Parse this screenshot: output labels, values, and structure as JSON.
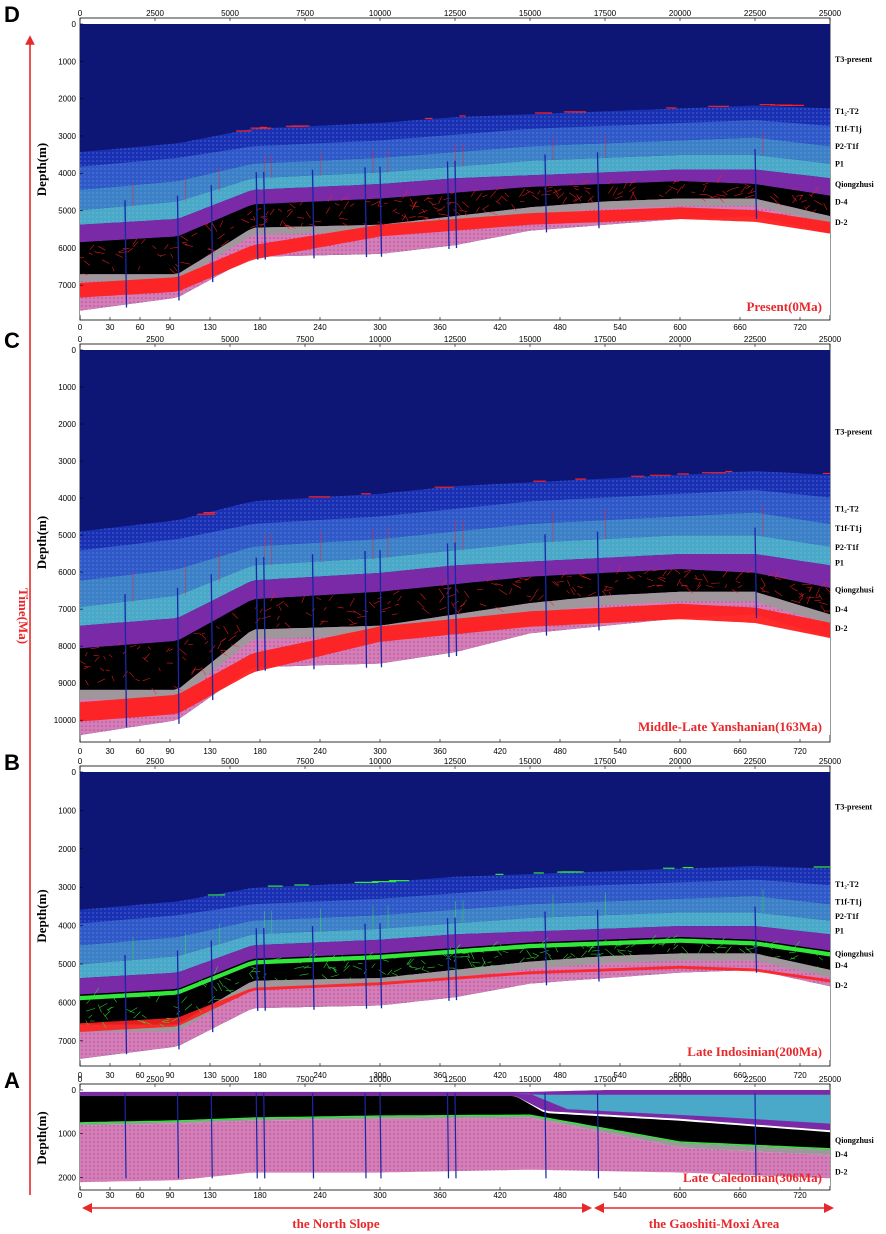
{
  "time_axis_label": "Time(Ma)",
  "depth_label": "Depth(m)",
  "top_ticks": [
    "0",
    "2500",
    "5000",
    "7500",
    "10000",
    "12500",
    "15000",
    "17500",
    "20000",
    "22500",
    "25000"
  ],
  "bottom_ticks": [
    "0",
    "30",
    "60",
    "90",
    "120",
    "150",
    "180",
    "210",
    "240",
    "270",
    "300",
    "330",
    "360",
    "390",
    "420",
    "450",
    "480",
    "510",
    "540",
    "570",
    "600",
    "630",
    "660",
    "690",
    "720",
    "750"
  ],
  "bottom_ticks_shown": [
    "0",
    "30",
    "60",
    "90",
    "130",
    "180",
    "240",
    "300",
    "360",
    "420",
    "480",
    "540",
    "600",
    "660",
    "720"
  ],
  "regions": {
    "north_slope": "the North Slope",
    "gaoshiti_moxi": "the Gaoshiti-Moxi Area"
  },
  "colors": {
    "background": "#0d1575",
    "t1_t2": "#1a30b4",
    "t1f_t1j": "#2f58c9",
    "p2_t1f": "#3c80c8",
    "p1": "#4aa9c8",
    "qiongzhusi": "#000000",
    "d4": "#9a9a9a",
    "d2": "#d67db8",
    "accent": "#e8282b",
    "oil": "#ff2020",
    "gas": "#30e83a",
    "well": "#1828a8",
    "purple_band": "#7a2aa6"
  },
  "panels": [
    {
      "letter": "D",
      "caption": "Present(0Ma)",
      "depth_ticks": [
        "0",
        "1000",
        "2000",
        "3000",
        "4000",
        "5000",
        "6000",
        "7000"
      ],
      "layers": [
        "T3-present",
        "T1₂-T2",
        "T1f-T1j",
        "P2-T1f",
        "P1",
        "Qiongzhusi",
        "D-4",
        "D-2"
      ],
      "fluid": "oil"
    },
    {
      "letter": "C",
      "caption": "Middle-Late Yanshanian(163Ma)",
      "depth_ticks": [
        "0",
        "1000",
        "2000",
        "3000",
        "4000",
        "5000",
        "6000",
        "7000",
        "8000",
        "9000",
        "10000"
      ],
      "layers": [
        "T3-present",
        "T1₂-T2",
        "T1f-T1j",
        "P2-T1f",
        "P1",
        "Qiongzhusi",
        "D-4",
        "D-2"
      ],
      "fluid": "oil"
    },
    {
      "letter": "B",
      "caption": "Late Indosinian(200Ma)",
      "depth_ticks": [
        "0",
        "1000",
        "2000",
        "3000",
        "4000",
        "5000",
        "6000",
        "7000"
      ],
      "layers": [
        "T3-present",
        "T1₂-T2",
        "T1f-T1j",
        "P2-T1f",
        "P1",
        "Qiongzhusi",
        "D-4",
        "D-2"
      ],
      "fluid": "gas"
    },
    {
      "letter": "A",
      "caption": "Late Caledonian(306Ma)",
      "depth_ticks": [
        "0",
        "1000",
        "2000"
      ],
      "layers": [
        "Qiongzhusi",
        "D-4",
        "D-2"
      ],
      "fluid": "gas"
    }
  ]
}
